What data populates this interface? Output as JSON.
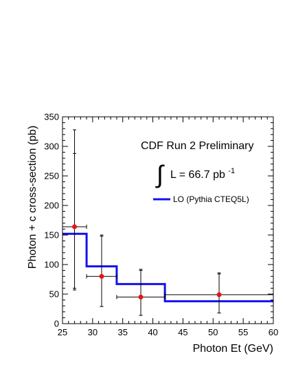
{
  "chart_data": {
    "type": "scatter",
    "xlabel": "Photon Et (GeV)",
    "ylabel": "Photon + c cross-section (pb)",
    "xlim": [
      25,
      60
    ],
    "ylim": [
      0,
      350
    ],
    "xticks": [
      25,
      30,
      35,
      40,
      45,
      50,
      55,
      60
    ],
    "yticks": [
      0,
      50,
      100,
      150,
      200,
      250,
      300,
      350
    ],
    "annotations": {
      "title": "CDF Run 2 Preliminary",
      "integral_symbol": "∫",
      "lumi_text": "L = 66.7 pb",
      "lumi_exponent": "-1"
    },
    "legend": {
      "placement": "top-right",
      "entries": [
        "LO (Pythia CTEQ5L)"
      ]
    },
    "series": [
      {
        "type": "points",
        "color": "#ee1111",
        "x": [
          27,
          31.5,
          38,
          51
        ],
        "y": [
          164,
          80,
          45,
          49
        ],
        "x_lo": [
          25,
          29,
          34,
          42
        ],
        "x_hi": [
          29,
          34,
          42,
          60
        ],
        "y_err_inner": [
          [
            60,
            288
          ],
          [
            29,
            148
          ],
          [
            14,
            90
          ],
          [
            18,
            84
          ]
        ],
        "y_err_outer": [
          [
            57,
            328
          ],
          [
            29,
            150
          ],
          [
            14,
            92
          ],
          [
            18,
            86
          ]
        ]
      },
      {
        "name": "LO (Pythia CTEQ5L)",
        "type": "step",
        "color": "#1111ee",
        "bins": [
          [
            25,
            29,
            152
          ],
          [
            29,
            34,
            97
          ],
          [
            34,
            42,
            67
          ],
          [
            42,
            60,
            38
          ]
        ]
      }
    ]
  }
}
